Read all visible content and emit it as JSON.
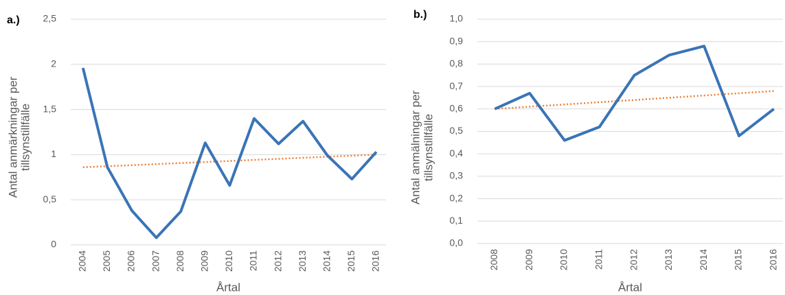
{
  "chart_data": [
    {
      "type": "line",
      "label": "a.)",
      "xlabel": "Årtal",
      "ylabel": [
        "Antal anmärkningar per",
        "tillsynstillfälle"
      ],
      "categories": [
        "2004",
        "2005",
        "2006",
        "2007",
        "2008",
        "2009",
        "2010",
        "2011",
        "2012",
        "2013",
        "2014",
        "2015",
        "2016"
      ],
      "series": [
        {
          "color": "#3a74b5",
          "values": [
            1.96,
            0.86,
            0.38,
            0.08,
            0.37,
            1.13,
            0.66,
            1.4,
            1.12,
            1.37,
            0.99,
            0.73,
            1.03
          ]
        }
      ],
      "trendline": {
        "color": "#ed7d31",
        "values": [
          0.86,
          1.0
        ]
      },
      "ylim": [
        0,
        2.5
      ],
      "yticks": [
        0,
        {
          "value": 0.5,
          "label": "0,5"
        },
        1,
        {
          "value": 1.5,
          "label": "1,5"
        },
        2,
        {
          "value": 2.5,
          "label": "2,5"
        }
      ],
      "grid": true
    },
    {
      "type": "line",
      "label": "b.)",
      "xlabel": "Årtal",
      "ylabel": [
        "Antal anmälningar per",
        "tillsynstillfälle"
      ],
      "categories": [
        "2008",
        "2009",
        "2010",
        "2011",
        "2012",
        "2013",
        "2014",
        "2015",
        "2016"
      ],
      "series": [
        {
          "color": "#3a74b5",
          "values": [
            0.6,
            0.67,
            0.46,
            0.52,
            0.75,
            0.84,
            0.88,
            0.48,
            0.6
          ]
        }
      ],
      "trendline": {
        "color": "#ed7d31",
        "values": [
          0.6,
          0.68
        ]
      },
      "ylim": [
        0,
        1.0
      ],
      "yticks": [
        {
          "value": 0,
          "label": "0,0"
        },
        {
          "value": 0.1,
          "label": "0,1"
        },
        {
          "value": 0.2,
          "label": "0,2"
        },
        {
          "value": 0.3,
          "label": "0,3"
        },
        {
          "value": 0.4,
          "label": "0,4"
        },
        {
          "value": 0.5,
          "label": "0,5"
        },
        {
          "value": 0.6,
          "label": "0,6"
        },
        {
          "value": 0.7,
          "label": "0,7"
        },
        {
          "value": 0.8,
          "label": "0,8"
        },
        {
          "value": 0.9,
          "label": "0,9"
        },
        {
          "value": 1.0,
          "label": "1,0"
        }
      ],
      "grid": true
    }
  ]
}
